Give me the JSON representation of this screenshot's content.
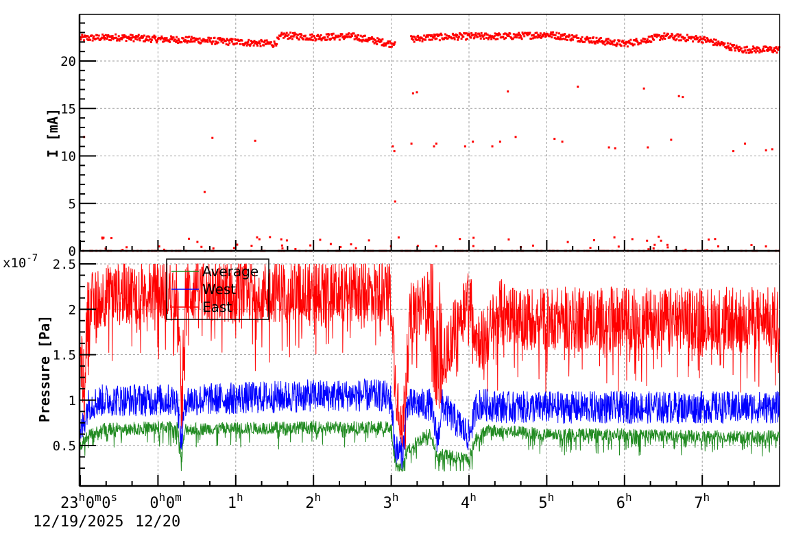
{
  "chart_data": [
    {
      "panel": "top",
      "type": "scatter",
      "title": "",
      "ylabel": "I [mA]",
      "xlabel": "",
      "ylim": [
        0,
        25
      ],
      "yticks": [
        0,
        5,
        10,
        15,
        20
      ],
      "grid": true,
      "x_unit": "hours since 23:00 12/19/2025",
      "xlim": [
        0,
        9.0
      ],
      "series": [
        {
          "name": "Current",
          "color": "#ff0000",
          "baseline_profile": {
            "x": [
              0.0,
              0.5,
              1.0,
              1.5,
              2.0,
              2.5,
              2.6,
              3.0,
              3.5,
              4.0,
              4.05,
              4.5,
              5.0,
              5.5,
              5.8,
              6.0,
              6.5,
              7.0,
              7.5,
              8.0,
              8.5,
              8.9
            ],
            "y": [
              22.4,
              22.5,
              22.3,
              22.2,
              22.0,
              21.8,
              22.7,
              22.5,
              22.6,
              21.8,
              22.1,
              22.5,
              22.6,
              22.6,
              22.7,
              22.8,
              22.3,
              21.8,
              22.6,
              22.3,
              21.2,
              21.2
            ]
          },
          "gap": [
            4.05,
            4.25
          ],
          "outliers": [
            {
              "x": 0.05,
              "y": 12.0
            },
            {
              "x": 1.6,
              "y": 6.2
            },
            {
              "x": 1.7,
              "y": 11.9
            },
            {
              "x": 2.25,
              "y": 11.6
            },
            {
              "x": 4.02,
              "y": 11.0
            },
            {
              "x": 4.04,
              "y": 10.5
            },
            {
              "x": 4.05,
              "y": 5.2
            },
            {
              "x": 4.26,
              "y": 11.3
            },
            {
              "x": 4.28,
              "y": 16.6
            },
            {
              "x": 4.33,
              "y": 16.7
            },
            {
              "x": 4.55,
              "y": 11.0
            },
            {
              "x": 4.58,
              "y": 11.3
            },
            {
              "x": 4.95,
              "y": 11.0
            },
            {
              "x": 5.05,
              "y": 11.5
            },
            {
              "x": 5.3,
              "y": 11.0
            },
            {
              "x": 5.4,
              "y": 11.5
            },
            {
              "x": 5.5,
              "y": 16.8
            },
            {
              "x": 5.6,
              "y": 12.0
            },
            {
              "x": 6.1,
              "y": 11.8
            },
            {
              "x": 6.2,
              "y": 11.5
            },
            {
              "x": 6.4,
              "y": 17.3
            },
            {
              "x": 6.8,
              "y": 10.9
            },
            {
              "x": 6.88,
              "y": 10.8
            },
            {
              "x": 7.25,
              "y": 17.1
            },
            {
              "x": 7.3,
              "y": 10.9
            },
            {
              "x": 7.6,
              "y": 11.7
            },
            {
              "x": 7.7,
              "y": 16.3
            },
            {
              "x": 7.75,
              "y": 16.2
            },
            {
              "x": 8.4,
              "y": 10.5
            },
            {
              "x": 8.55,
              "y": 11.3
            },
            {
              "x": 8.82,
              "y": 10.6
            },
            {
              "x": 8.9,
              "y": 10.7
            }
          ],
          "near_zero_points": "dense scattered points between 0 and 1.5 across full range"
        }
      ]
    },
    {
      "panel": "bottom",
      "type": "line",
      "title": "",
      "ylabel": "Pressure [Pa]",
      "y_multiplier": "x10^-7",
      "ylim": [
        0.2,
        2.6
      ],
      "yticks": [
        0.5,
        1,
        1.5,
        2,
        2.5
      ],
      "grid": true,
      "legend_position": "upper-left",
      "xlim": [
        0,
        9.0
      ],
      "xtick_labels": [
        "23h0m0s",
        "0h0m",
        "1h",
        "2h",
        "3h",
        "4h",
        "5h",
        "6h",
        "7h"
      ],
      "xtick_positions": [
        0,
        1,
        2,
        3,
        4,
        5,
        6,
        7,
        8
      ],
      "x_date_labels": [
        "12/19/2025",
        "12/20"
      ],
      "series": [
        {
          "name": "Average",
          "color": "#228b22",
          "x": [
            0.0,
            0.1,
            0.3,
            1.0,
            1.25,
            1.3,
            1.35,
            2.0,
            3.0,
            3.9,
            4.0,
            4.05,
            4.15,
            4.2,
            4.5,
            4.6,
            4.65,
            5.0,
            5.1,
            5.2,
            5.5,
            6.0,
            7.0,
            8.0,
            9.0
          ],
          "base": [
            0.5,
            0.6,
            0.68,
            0.7,
            0.7,
            0.35,
            0.68,
            0.69,
            0.7,
            0.7,
            0.7,
            0.3,
            0.24,
            0.45,
            0.65,
            0.35,
            0.4,
            0.35,
            0.6,
            0.66,
            0.66,
            0.62,
            0.62,
            0.6,
            0.6
          ],
          "noise": 0.07
        },
        {
          "name": "West",
          "color": "#0000ff",
          "x": [
            0.0,
            0.1,
            0.3,
            1.0,
            1.25,
            1.3,
            1.35,
            2.0,
            3.0,
            3.9,
            4.0,
            4.05,
            4.15,
            4.2,
            4.5,
            4.6,
            4.65,
            5.0,
            5.1,
            5.2,
            5.5,
            6.0,
            7.0,
            8.0,
            9.0
          ],
          "base": [
            0.6,
            0.95,
            1.0,
            1.0,
            1.0,
            0.5,
            1.0,
            1.02,
            1.05,
            1.05,
            1.0,
            0.45,
            0.4,
            0.95,
            0.95,
            0.55,
            0.95,
            0.6,
            0.95,
            0.95,
            0.92,
            0.92,
            0.92,
            0.92,
            0.92
          ],
          "noise": 0.18
        },
        {
          "name": "East",
          "color": "#ff0000",
          "x": [
            0.0,
            0.05,
            0.1,
            0.3,
            1.0,
            1.25,
            1.3,
            1.35,
            2.0,
            3.0,
            3.9,
            4.0,
            4.05,
            4.15,
            4.25,
            4.5,
            4.6,
            4.65,
            5.0,
            5.1,
            5.2,
            5.4,
            5.5,
            5.6,
            6.0,
            7.0,
            8.0,
            9.0
          ],
          "base": [
            1.5,
            1.2,
            2.05,
            2.15,
            2.2,
            2.2,
            1.0,
            2.2,
            2.2,
            2.2,
            2.2,
            2.25,
            1.2,
            0.72,
            1.95,
            2.1,
            1.6,
            1.4,
            2.2,
            1.7,
            1.65,
            2.0,
            1.95,
            1.9,
            1.9,
            1.9,
            1.9,
            1.9
          ],
          "noise": 0.35
        }
      ]
    }
  ],
  "axes": {
    "top": {
      "ylabel": "I [mA]",
      "ytick_labels": [
        "0",
        "5",
        "10",
        "15",
        "20"
      ]
    },
    "bottom": {
      "ylabel": "Pressure [Pa]",
      "exponent_label": "x10",
      "exponent_power": "-7",
      "ytick_labels": [
        "0.5",
        "1",
        "1.5",
        "2",
        "2.5"
      ]
    },
    "x": {
      "labels": [
        {
          "main": "23",
          "parts": [
            [
              "23",
              "h"
            ],
            [
              "0",
              "m"
            ],
            [
              "0",
              "s"
            ]
          ]
        },
        {
          "main": "0",
          "parts": [
            [
              "0",
              "h"
            ],
            [
              "0",
              "m"
            ]
          ]
        },
        {
          "main": "1",
          "parts": [
            [
              "1",
              "h"
            ]
          ]
        },
        {
          "main": "2",
          "parts": [
            [
              "2",
              "h"
            ]
          ]
        },
        {
          "main": "3",
          "parts": [
            [
              "3",
              "h"
            ]
          ]
        },
        {
          "main": "4",
          "parts": [
            [
              "4",
              "h"
            ]
          ]
        },
        {
          "main": "5",
          "parts": [
            [
              "5",
              "h"
            ]
          ]
        },
        {
          "main": "6",
          "parts": [
            [
              "6",
              "h"
            ]
          ]
        },
        {
          "main": "7",
          "parts": [
            [
              "7",
              "h"
            ]
          ]
        }
      ],
      "date_labels": [
        "12/19/2025",
        "12/20"
      ]
    }
  },
  "legend": {
    "items": [
      {
        "label": "Average",
        "color": "#228b22"
      },
      {
        "label": "West",
        "color": "#0000ff"
      },
      {
        "label": "East",
        "color": "#ff0000"
      }
    ]
  }
}
